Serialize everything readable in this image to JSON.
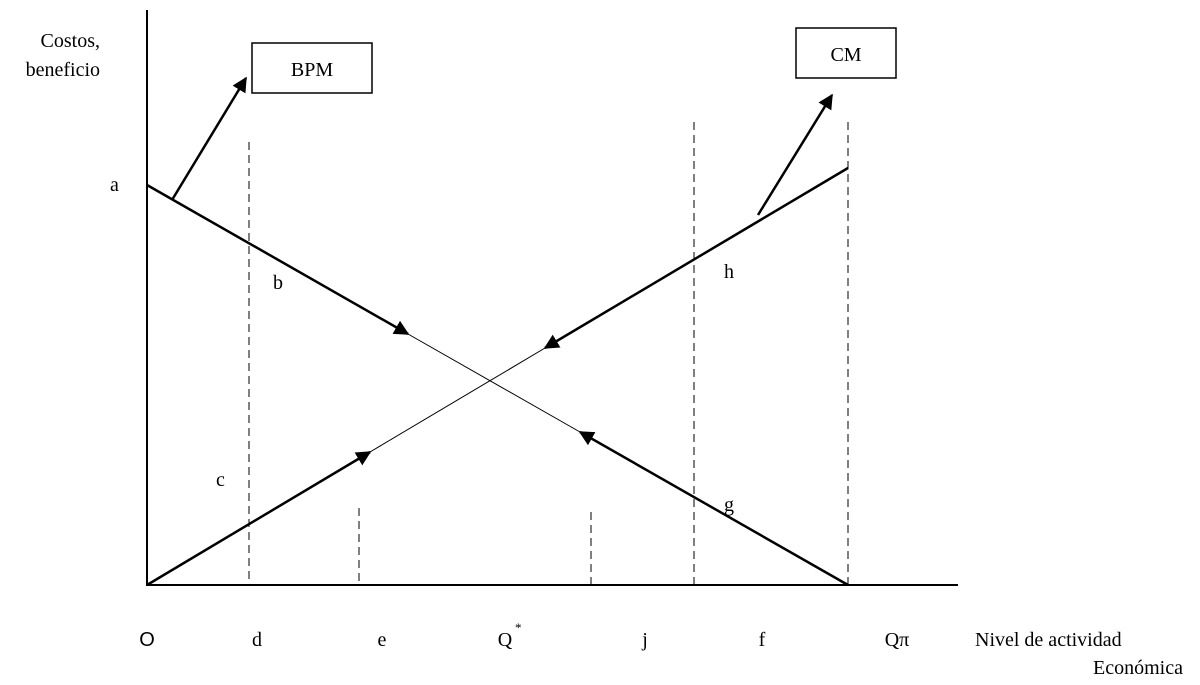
{
  "axis_labels": {
    "y": [
      "Costos,",
      "beneficio"
    ],
    "x": [
      "Nivel de actividad",
      "Económica"
    ]
  },
  "boxes": {
    "bpm": "BPM",
    "cm": "CM"
  },
  "point_labels": {
    "a": "a",
    "b": "b",
    "c": "c",
    "h": "h",
    "g": "g"
  },
  "x_labels": [
    {
      "text": "O"
    },
    {
      "text": "d"
    },
    {
      "text": "e"
    },
    {
      "text": "Q",
      "sup": "*"
    },
    {
      "text": "j"
    },
    {
      "text": "f"
    },
    {
      "text": "Qπ"
    }
  ]
}
